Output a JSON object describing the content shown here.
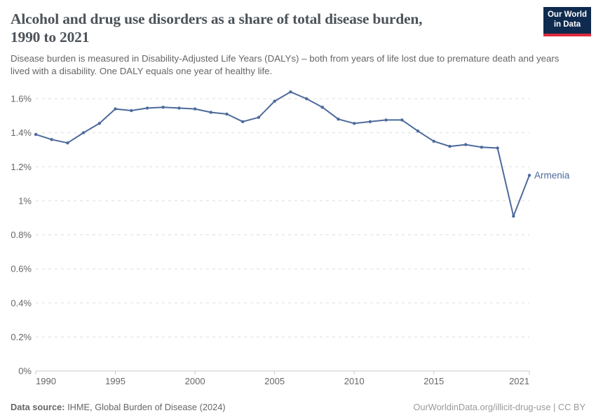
{
  "header": {
    "title_line1": "Alcohol and drug use disorders as a share of total disease burden,",
    "title_line2": "1990 to 2021",
    "subtitle": "Disease burden is measured in Disability-Adjusted Life Years (DALYs) – both from years of life lost due to premature death and years lived with a disability. One DALY equals one year of healthy life.",
    "logo_line1": "Our World",
    "logo_line2": "in Data",
    "logo_bg_color": "#0e2a4e",
    "logo_accent_color": "#dc2b3b"
  },
  "chart_data": {
    "type": "line",
    "title": "Alcohol and drug use disorders as a share of total disease burden, 1990 to 2021",
    "x": [
      1990,
      1991,
      1992,
      1993,
      1994,
      1995,
      1996,
      1997,
      1998,
      1999,
      2000,
      2001,
      2002,
      2003,
      2004,
      2005,
      2006,
      2007,
      2008,
      2009,
      2010,
      2011,
      2012,
      2013,
      2014,
      2015,
      2016,
      2017,
      2018,
      2019,
      2020,
      2021
    ],
    "series": [
      {
        "name": "Armenia",
        "values": [
          1.39,
          1.36,
          1.34,
          1.4,
          1.455,
          1.54,
          1.53,
          1.545,
          1.55,
          1.545,
          1.54,
          1.52,
          1.51,
          1.465,
          1.49,
          1.585,
          1.64,
          1.6,
          1.55,
          1.48,
          1.455,
          1.465,
          1.475,
          1.475,
          1.41,
          1.35,
          1.32,
          1.33,
          1.315,
          1.31,
          0.91,
          1.15
        ],
        "color": "#4c6a9c"
      }
    ],
    "xlabel": "",
    "ylabel": "",
    "xlim": [
      1990,
      2021
    ],
    "ylim": [
      0,
      1.6
    ],
    "xticks": [
      1990,
      1995,
      2000,
      2005,
      2010,
      2015,
      2021
    ],
    "xtick_labels": [
      "1990",
      "1995",
      "2000",
      "2005",
      "2010",
      "2015",
      "2021"
    ],
    "yticks": [
      0,
      0.2,
      0.4,
      0.6,
      0.8,
      1.0,
      1.2,
      1.4,
      1.6
    ],
    "ytick_labels": [
      "0%",
      "0.2%",
      "0.4%",
      "0.6%",
      "0.8%",
      "1%",
      "1.2%",
      "1.4%",
      "1.6%"
    ],
    "grid": "horizontal-dashed",
    "legend_position": "end-of-line-label",
    "entity_label": "Armenia",
    "grid_color": "#dedede",
    "axis_color": "#c8c8c8",
    "tick_label_color": "#666666"
  },
  "footer": {
    "source_label": "Data source:",
    "source_value": "IHME, Global Burden of Disease (2024)",
    "link": "OurWorldinData.org/illicit-drug-use | CC BY"
  }
}
